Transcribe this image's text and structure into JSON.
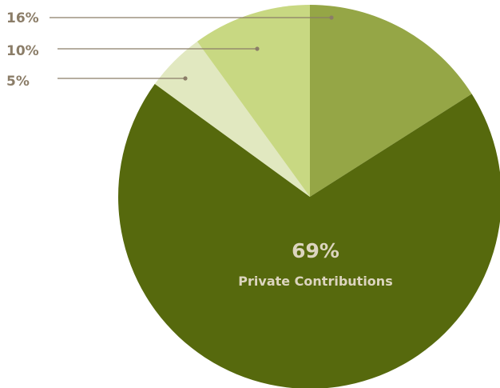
{
  "chart_data": {
    "type": "pie",
    "start": "top",
    "direction": "clockwise",
    "slices": [
      {
        "value": 16,
        "label": "16%",
        "color": "#95a646"
      },
      {
        "value": 69,
        "label": "69%",
        "name": "Private Contributions",
        "color": "#56690d"
      },
      {
        "value": 5,
        "label": "5%",
        "color": "#e1e8c0"
      },
      {
        "value": 10,
        "label": "10%",
        "color": "#c8d882"
      }
    ],
    "leader_color": "#8b7d68"
  }
}
